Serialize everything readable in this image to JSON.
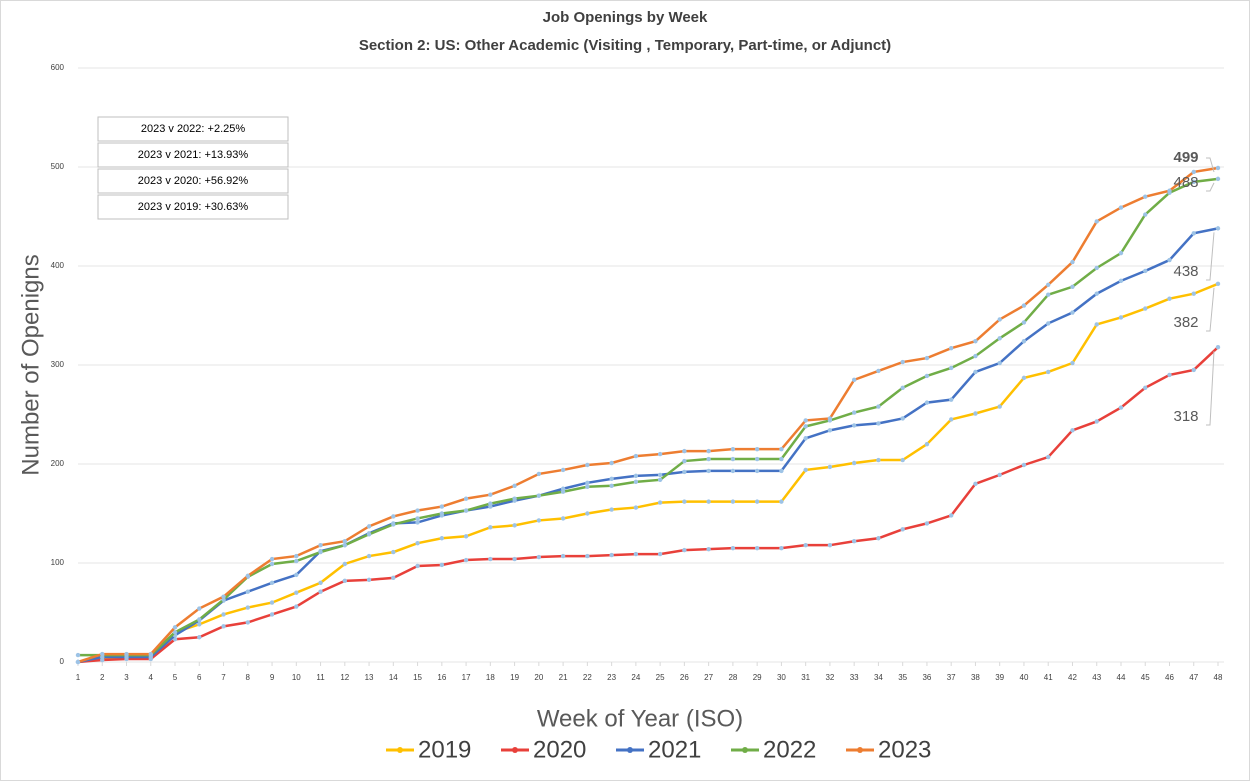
{
  "chart_data": {
    "type": "line",
    "title": "Job Openings by Week",
    "subtitle": "Section 2: US: Other Academic (Visiting , Temporary, Part-time, or Adjunct)",
    "x_label": "Week of Year (ISO)",
    "y_label": "Number of Openigns",
    "annotations": [
      "2023 v 2022: +2.25%",
      "2023 v 2021: +13.93%",
      "2023 v 2020: +56.92%",
      "2023 v 2019: +30.63%"
    ],
    "x": [
      1,
      2,
      3,
      4,
      5,
      6,
      7,
      8,
      9,
      10,
      11,
      12,
      13,
      14,
      15,
      16,
      17,
      18,
      19,
      20,
      21,
      22,
      23,
      24,
      25,
      26,
      27,
      28,
      29,
      30,
      31,
      32,
      33,
      34,
      35,
      36,
      37,
      38,
      39,
      40,
      41,
      42,
      43,
      44,
      45,
      46,
      47,
      48
    ],
    "xlim": [
      1,
      48
    ],
    "xticks": [
      1,
      2,
      3,
      4,
      5,
      6,
      7,
      8,
      9,
      10,
      11,
      12,
      13,
      14,
      15,
      16,
      17,
      18,
      19,
      20,
      21,
      22,
      23,
      24,
      25,
      26,
      27,
      28,
      29,
      30,
      31,
      32,
      33,
      34,
      35,
      36,
      37,
      38,
      39,
      40,
      41,
      42,
      43,
      44,
      45,
      46,
      47,
      48
    ],
    "ylim": [
      0,
      600
    ],
    "yticks": [
      0,
      100,
      200,
      300,
      400,
      500,
      600
    ],
    "grid": true,
    "legend": "bottom",
    "series": [
      {
        "name": "2019",
        "color": "#ffc000",
        "values": [
          0,
          3,
          4,
          4,
          30,
          38,
          48,
          55,
          60,
          70,
          80,
          99,
          107,
          111,
          120,
          125,
          127,
          136,
          138,
          143,
          145,
          150,
          154,
          156,
          161,
          162,
          162,
          162,
          162,
          162,
          194,
          197,
          201,
          204,
          204,
          220,
          245,
          251,
          258,
          287,
          293,
          302,
          341,
          348,
          357,
          367,
          372,
          382
        ]
      },
      {
        "name": "2020",
        "color": "#e8403a",
        "values": [
          0,
          2,
          3,
          3,
          23,
          25,
          36,
          40,
          48,
          56,
          71,
          82,
          83,
          85,
          97,
          98,
          103,
          104,
          104,
          106,
          107,
          107,
          108,
          109,
          109,
          113,
          114,
          115,
          115,
          115,
          118,
          118,
          122,
          125,
          134,
          140,
          148,
          180,
          189,
          199,
          207,
          234,
          243,
          257,
          277,
          290,
          295,
          318
        ]
      },
      {
        "name": "2021",
        "color": "#4472c4",
        "values": [
          0,
          5,
          5,
          5,
          27,
          42,
          62,
          71,
          80,
          88,
          112,
          118,
          130,
          140,
          141,
          148,
          153,
          157,
          163,
          168,
          175,
          181,
          185,
          188,
          189,
          192,
          193,
          193,
          193,
          193,
          226,
          234,
          239,
          241,
          246,
          262,
          265,
          293,
          302,
          324,
          342,
          353,
          372,
          385,
          395,
          406,
          433,
          438
        ]
      },
      {
        "name": "2022",
        "color": "#70ad47",
        "values": [
          7,
          7,
          7,
          7,
          30,
          43,
          63,
          86,
          99,
          102,
          111,
          118,
          129,
          139,
          145,
          150,
          153,
          160,
          165,
          168,
          172,
          177,
          178,
          182,
          184,
          203,
          205,
          205,
          205,
          205,
          238,
          244,
          252,
          258,
          277,
          289,
          297,
          309,
          327,
          343,
          371,
          379,
          398,
          413,
          452,
          474,
          485,
          488
        ]
      },
      {
        "name": "2023",
        "color": "#ed7d31",
        "values": [
          0,
          8,
          8,
          8,
          35,
          54,
          66,
          87,
          104,
          107,
          118,
          122,
          137,
          147,
          153,
          157,
          165,
          169,
          178,
          190,
          194,
          199,
          201,
          208,
          210,
          213,
          213,
          215,
          215,
          215,
          244,
          246,
          285,
          294,
          303,
          307,
          317,
          324,
          346,
          360,
          381,
          404,
          445,
          459,
          470,
          476,
          495,
          499
        ]
      }
    ]
  }
}
